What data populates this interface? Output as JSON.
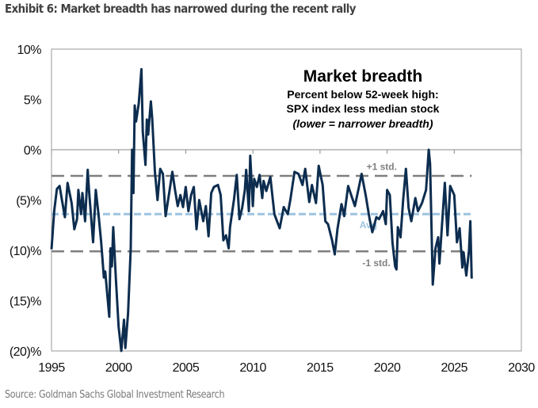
{
  "title": "Exhibit 6: Market breadth has narrowed during the recent rally",
  "source": "Source: Goldman Sachs Global Investment Research",
  "chart_data": {
    "type": "line",
    "inset_title": "Market breadth",
    "inset_subtitle": [
      "Percent below 52-week high:",
      "SPX index less median stock",
      "(lower = narrower breadth)"
    ],
    "xlim": [
      1995,
      2030
    ],
    "ylim": [
      -20,
      10
    ],
    "x_ticks": [
      "1995",
      "2000",
      "2005",
      "2010",
      "2015",
      "2020",
      "2025",
      "2030"
    ],
    "y_ticks": [
      {
        "value": 10,
        "label": "10%"
      },
      {
        "value": 5,
        "label": "5%"
      },
      {
        "value": 0,
        "label": "0%"
      },
      {
        "value": -5,
        "label": "(5)%"
      },
      {
        "value": -10,
        "label": "(10)%"
      },
      {
        "value": -15,
        "label": "(15)%"
      },
      {
        "value": -20,
        "label": "(20)%"
      }
    ],
    "reference_lines": [
      {
        "label": "+1 std.",
        "value": -2.6,
        "color": "#7f7f7f"
      },
      {
        "label": "Avg",
        "value": -6.4,
        "color": "#9cc3e0"
      },
      {
        "label": "-1 std.",
        "value": -10.1,
        "color": "#7f7f7f"
      }
    ],
    "line_color": "#0d2d4f",
    "grid": false,
    "x": [
      1995.0,
      1995.2,
      1995.4,
      1995.6,
      1995.8,
      1996.0,
      1996.2,
      1996.5,
      1996.7,
      1996.9,
      1997.0,
      1997.2,
      1997.3,
      1997.5,
      1997.7,
      1997.8,
      1998.1,
      1998.3,
      1998.5,
      1998.7,
      1998.9,
      1999.0,
      1999.3,
      1999.4,
      1999.5,
      1999.6,
      1999.8,
      2000.0,
      2000.2,
      2000.4,
      2000.5,
      2000.7,
      2000.9,
      2001.0,
      2001.1,
      2001.2,
      2001.3,
      2001.5,
      2001.7,
      2001.8,
      2002.0,
      2002.1,
      2002.2,
      2002.4,
      2002.5,
      2002.7,
      2002.9,
      2003.1,
      2003.3,
      2003.5,
      2003.8,
      2004.0,
      2004.2,
      2004.4,
      2004.6,
      2004.8,
      2005.0,
      2005.2,
      2005.4,
      2005.6,
      2005.8,
      2006.0,
      2006.3,
      2006.5,
      2006.7,
      2006.9,
      2007.1,
      2007.4,
      2007.6,
      2007.8,
      2008.0,
      2008.2,
      2008.3,
      2008.6,
      2008.8,
      2009.0,
      2009.2,
      2009.4,
      2009.5,
      2009.7,
      2009.8,
      2010.0,
      2010.1,
      2010.3,
      2010.5,
      2010.7,
      2010.8,
      2011.0,
      2011.3,
      2011.6,
      2011.8,
      2012.0,
      2012.3,
      2012.6,
      2012.8,
      2013.1,
      2013.4,
      2013.7,
      2013.9,
      2014.2,
      2014.4,
      2014.7,
      2014.9,
      2015.2,
      2015.4,
      2015.6,
      2015.9,
      2016.1,
      2016.3,
      2016.6,
      2016.8,
      2017.1,
      2017.4,
      2017.6,
      2017.9,
      2018.1,
      2018.4,
      2018.7,
      2018.9,
      2019.2,
      2019.4,
      2019.7,
      2019.9,
      2020.0,
      2020.2,
      2020.4,
      2020.6,
      2020.7,
      2020.8,
      2021.0,
      2021.2,
      2021.4,
      2021.6,
      2021.8,
      2022.1,
      2022.3,
      2022.6,
      2022.9,
      2023.1,
      2023.2,
      2023.4,
      2023.6,
      2023.8,
      2023.9,
      2024.2,
      2024.3,
      2024.5,
      2024.7,
      2025.0,
      2025.2,
      2025.4,
      2025.6,
      2025.7,
      2025.9,
      2026.1,
      2026.2,
      2026.3
    ],
    "values": [
      -9.9,
      -6.1,
      -3.9,
      -3.6,
      -5.2,
      -6.7,
      -3.3,
      -5.3,
      -7.9,
      -6.9,
      -4.0,
      -6.4,
      -4.3,
      -7.1,
      -2.0,
      -4.1,
      -9.2,
      -4.0,
      -6.4,
      -9.2,
      -12.7,
      -12.1,
      -16.6,
      -9.8,
      -11.6,
      -7.7,
      -12.9,
      -17.6,
      -20.0,
      -16.9,
      -19.7,
      -16.3,
      -9.8,
      0.0,
      -4.3,
      4.4,
      2.8,
      4.6,
      8.0,
      1.8,
      -1.5,
      3.0,
      1.5,
      4.8,
      3.1,
      -2.2,
      -5.0,
      -1.9,
      -2.4,
      -6.6,
      -4.0,
      -2.2,
      -4.0,
      -5.6,
      -4.5,
      -5.7,
      -3.7,
      -6.1,
      -4.5,
      -3.7,
      -7.9,
      -5.0,
      -7.1,
      -5.6,
      -8.6,
      -4.3,
      -3.7,
      -3.5,
      -4.5,
      -9.0,
      -8.5,
      -9.8,
      -7.7,
      -4.9,
      -2.5,
      -6.9,
      -5.8,
      -4.0,
      -2.0,
      -6.1,
      -0.6,
      -5.6,
      -2.9,
      -3.7,
      -2.5,
      -4.8,
      -3.1,
      -4.1,
      -2.7,
      -6.4,
      -7.1,
      -7.8,
      -5.7,
      -6.4,
      -4.9,
      -2.2,
      -2.4,
      -3.5,
      -1.9,
      -5.2,
      -3.5,
      -5.3,
      -1.6,
      -3.5,
      -7.1,
      -7.4,
      -9.0,
      -10.4,
      -7.9,
      -5.4,
      -6.6,
      -3.6,
      -4.8,
      -5.6,
      -3.7,
      -2.4,
      -4.5,
      -6.9,
      -8.2,
      -6.7,
      -6.9,
      -6.1,
      -7.4,
      -4.0,
      -4.5,
      -9.2,
      -11.6,
      -11.9,
      -7.7,
      -8.7,
      -4.9,
      -1.9,
      -5.8,
      -7.1,
      -4.8,
      -6.1,
      -5.3,
      -4.0,
      0.0,
      -1.4,
      -13.4,
      -9.8,
      -8.7,
      -11.3,
      -5.3,
      -3.3,
      -8.5,
      -3.6,
      -4.5,
      -9.2,
      -7.8,
      -11.7,
      -10.2,
      -12.5,
      -10.0,
      -7.1,
      -12.8
    ]
  }
}
